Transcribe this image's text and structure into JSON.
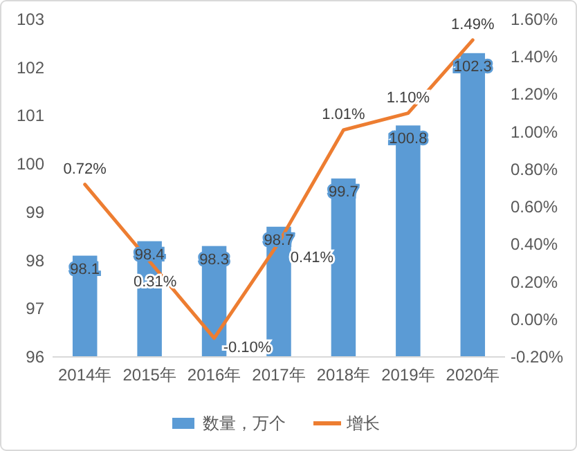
{
  "chart_data": {
    "type": "bar",
    "categories": [
      "2014年",
      "2015年",
      "2016年",
      "2017年",
      "2018年",
      "2019年",
      "2020年"
    ],
    "series": [
      {
        "name": "数量，万个",
        "color": "#5b9bd5",
        "values": [
          98.1,
          98.4,
          98.3,
          98.7,
          99.7,
          100.8,
          102.3
        ],
        "value_labels": [
          "98.1",
          "98.4",
          "98.3",
          "98.7",
          "99.7",
          "100.8",
          "102.3"
        ]
      },
      {
        "name": "增长",
        "type": "line",
        "axis": "y2",
        "color": "#ed7d31",
        "values": [
          0.72,
          0.31,
          -0.1,
          0.41,
          1.01,
          1.1,
          1.49
        ],
        "value_labels": [
          "0.72%",
          "0.31%",
          "-0.10%",
          "0.41%",
          "1.01%",
          "1.10%",
          "1.49%"
        ]
      }
    ],
    "ylim": [
      96,
      103
    ],
    "yticks": [
      96,
      97,
      98,
      99,
      100,
      101,
      102,
      103
    ],
    "y2lim": [
      -0.2,
      1.6
    ],
    "y2ticks": [
      {
        "value": -0.2,
        "label": "-0.20%"
      },
      {
        "value": 0,
        "label": "0.00%"
      },
      {
        "value": 0.2,
        "label": "0.20%"
      },
      {
        "value": 0.4,
        "label": "0.40%"
      },
      {
        "value": 0.6,
        "label": "0.60%"
      },
      {
        "value": 0.8,
        "label": "0.80%"
      },
      {
        "value": 1.0,
        "label": "1.00%"
      },
      {
        "value": 1.2,
        "label": "1.20%"
      },
      {
        "value": 1.4,
        "label": "1.40%"
      },
      {
        "value": 1.6,
        "label": "1.60%"
      }
    ],
    "legend": "bottom",
    "grid": false,
    "marker": "none",
    "line_style": "solid"
  }
}
